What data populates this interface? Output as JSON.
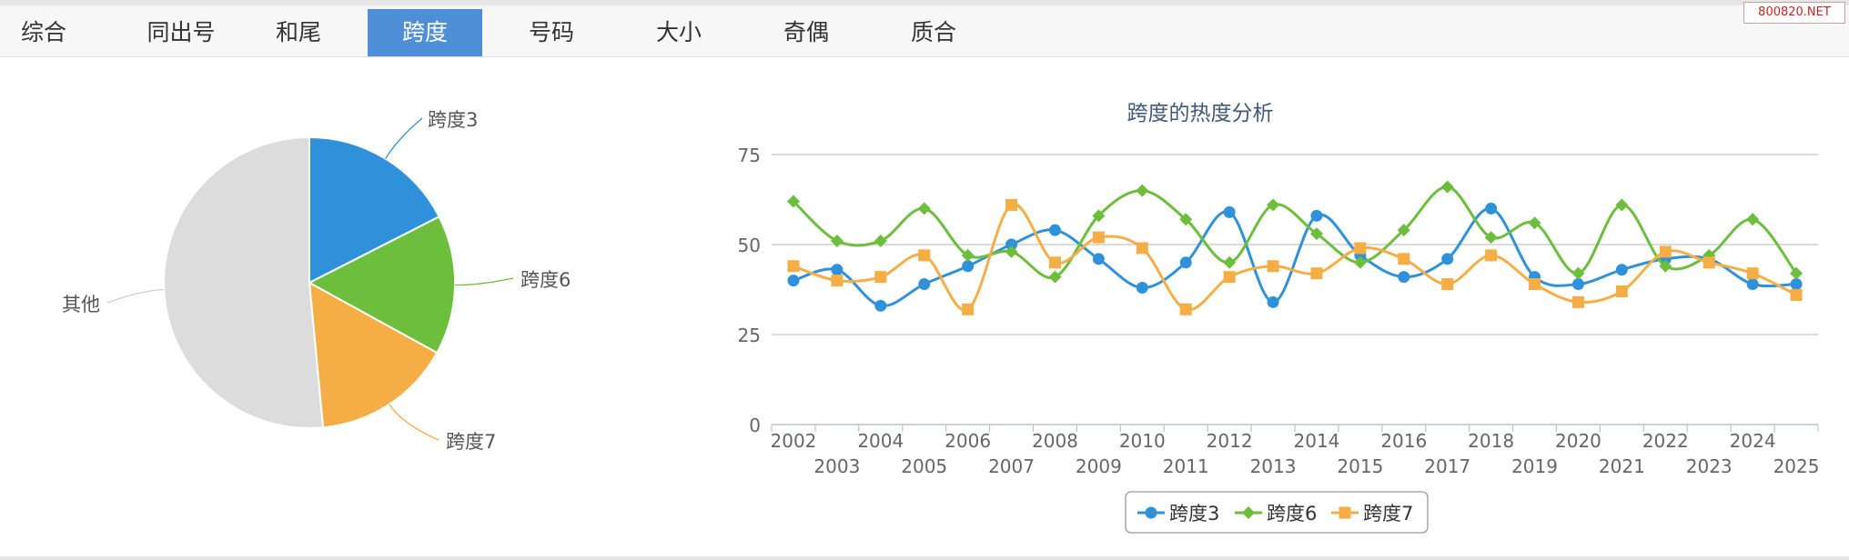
{
  "tabs": [
    {
      "label": "综合",
      "active": false
    },
    {
      "label": "同出号",
      "active": false
    },
    {
      "label": "和尾",
      "active": false
    },
    {
      "label": "跨度",
      "active": true
    },
    {
      "label": "号码",
      "active": false
    },
    {
      "label": "大小",
      "active": false
    },
    {
      "label": "奇偶",
      "active": false
    },
    {
      "label": "质合",
      "active": false
    }
  ],
  "watermark": "800820.NET",
  "colors": {
    "span3": "#2f91da",
    "span6": "#6cbe3c",
    "span7": "#f5ae45",
    "other": "#dcdcdc",
    "active_tab": "#4f8fd8"
  },
  "chart_data": [
    {
      "type": "pie",
      "slices": [
        {
          "label": "跨度3",
          "value": 17.5,
          "color": "#2f91da"
        },
        {
          "label": "跨度6",
          "value": 15.5,
          "color": "#6cbe3c"
        },
        {
          "label": "跨度7",
          "value": 15.5,
          "color": "#f5ae45"
        },
        {
          "label": "其他",
          "value": 51.5,
          "color": "#dcdcdc"
        }
      ]
    },
    {
      "type": "line",
      "title": "跨度的热度分析",
      "x": [
        "2002",
        "2003",
        "2004",
        "2005",
        "2006",
        "2007",
        "2008",
        "2009",
        "2010",
        "2011",
        "2012",
        "2013",
        "2014",
        "2015",
        "2016",
        "2017",
        "2018",
        "2019",
        "2020",
        "2021",
        "2022",
        "2023",
        "2024",
        "2025"
      ],
      "ylim": [
        0,
        75
      ],
      "yticks": [
        0,
        25,
        50,
        75
      ],
      "grid": true,
      "legend": "bottom-center",
      "series": [
        {
          "name": "跨度3",
          "marker": "circle",
          "color": "#2f91da",
          "values": [
            40,
            43,
            33,
            39,
            44,
            50,
            54,
            46,
            38,
            45,
            59,
            34,
            58,
            47,
            41,
            46,
            60,
            41,
            39,
            43,
            46,
            46,
            39,
            39
          ]
        },
        {
          "name": "跨度6",
          "marker": "diamond",
          "color": "#6cbe3c",
          "values": [
            62,
            51,
            51,
            60,
            47,
            48,
            41,
            58,
            65,
            57,
            45,
            61,
            53,
            45,
            54,
            66,
            52,
            56,
            42,
            61,
            44,
            47,
            57,
            42
          ]
        },
        {
          "name": "跨度7",
          "marker": "square",
          "color": "#f5ae45",
          "values": [
            44,
            40,
            41,
            47,
            32,
            61,
            45,
            52,
            49,
            32,
            41,
            44,
            42,
            49,
            46,
            39,
            47,
            39,
            34,
            37,
            48,
            45,
            42,
            36
          ]
        }
      ]
    }
  ]
}
